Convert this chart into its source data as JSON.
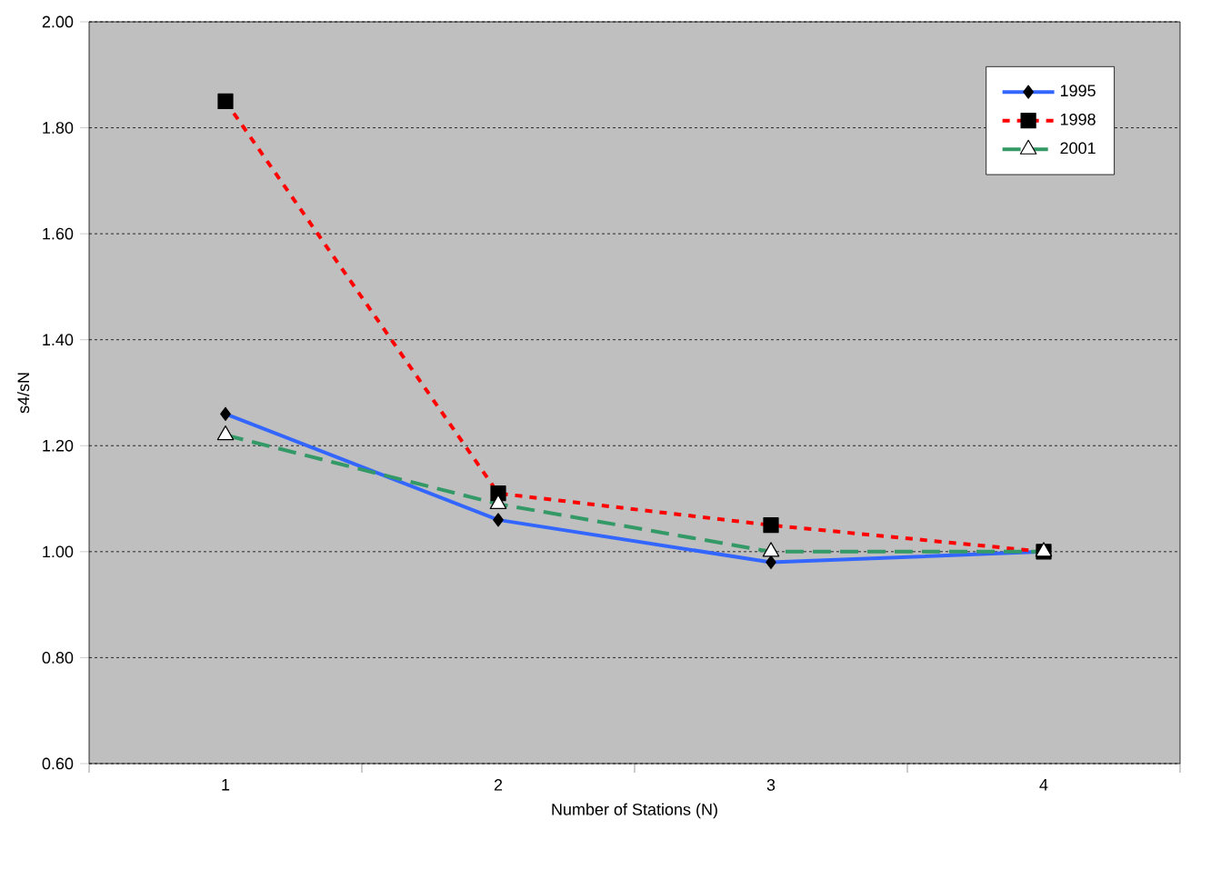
{
  "chart_data": {
    "type": "line",
    "xlabel": "Number of Stations (N)",
    "ylabel": "s4/sN",
    "categories": [
      "1",
      "2",
      "3",
      "4"
    ],
    "series": [
      {
        "name": "1995",
        "color": "#3366ff",
        "marker": "diamond",
        "line_style": "solid",
        "values": [
          1.26,
          1.06,
          0.98,
          1.0
        ]
      },
      {
        "name": "1998",
        "color": "#ff0000",
        "marker": "square",
        "line_style": "dotted",
        "values": [
          1.85,
          1.11,
          1.05,
          1.0
        ]
      },
      {
        "name": "2001",
        "color": "#339966",
        "marker": "triangle",
        "line_style": "dashed",
        "values": [
          1.22,
          1.09,
          1.0,
          1.0
        ]
      }
    ],
    "ylim": [
      0.6,
      2.0
    ],
    "yticks": [
      {
        "value": 0.6,
        "label": "0.60"
      },
      {
        "value": 0.8,
        "label": "0.80"
      },
      {
        "value": 1.0,
        "label": "1.00"
      },
      {
        "value": 1.2,
        "label": "1.20"
      },
      {
        "value": 1.4,
        "label": "1.40"
      },
      {
        "value": 1.6,
        "label": "1.60"
      },
      {
        "value": 1.8,
        "label": "1.80"
      },
      {
        "value": 2.0,
        "label": "2.00"
      }
    ],
    "grid": "y",
    "legend": "top right"
  }
}
